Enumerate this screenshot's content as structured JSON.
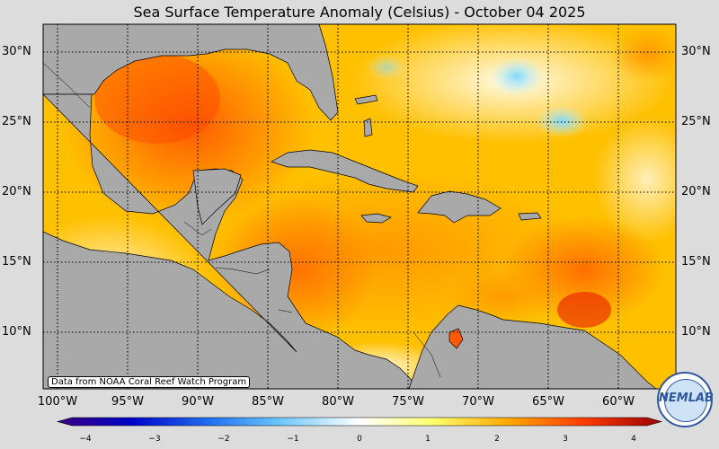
{
  "title": "Sea Surface Temperature Anomaly (Celsius) - October 04 2025",
  "lat_labels": [
    "30°N",
    "25°N",
    "20°N",
    "15°N",
    "10°N"
  ],
  "lon_labels": [
    "100°W",
    "95°W",
    "90°W",
    "85°W",
    "80°W",
    "75°W",
    "70°W",
    "65°W",
    "60°W"
  ],
  "credit": "Data from NOAA Coral Reef Watch Program",
  "colorbar": {
    "ticks": [
      "−4",
      "−3",
      "−2",
      "−1",
      "0",
      "1",
      "2",
      "3",
      "4"
    ],
    "colors": [
      "#3a007f",
      "#0000c8",
      "#1e6ef0",
      "#6ec8ff",
      "#ffffff",
      "#ffff6e",
      "#ffa500",
      "#ff3c00",
      "#9b0000"
    ]
  },
  "logo": {
    "text": "NEMLAB"
  },
  "colors": {
    "land": "#a9a9a9",
    "background": "#dcdcdc",
    "grid": "#000000"
  }
}
